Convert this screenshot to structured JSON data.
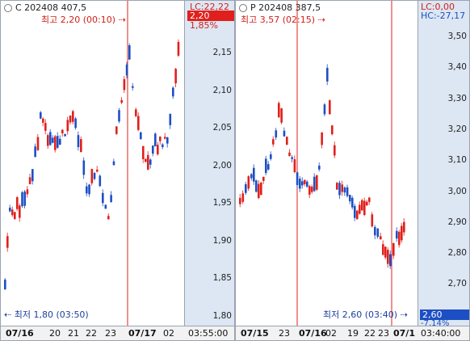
{
  "left": {
    "contract": "C 202408 407,5",
    "high_label": "최고 2,20 (00:10)",
    "low_label": "최저 1,80 (03:50)",
    "lc_label": "LC:22,22",
    "last_price": "2,20",
    "change_pct": "1,85%",
    "price_ticks": [
      "2,15",
      "2,10",
      "2,05",
      "2,00",
      "1,95",
      "1,90",
      "1,85",
      "1,80"
    ],
    "date_labels": [
      "07/16",
      "20",
      "21",
      "22",
      "23",
      "07/17",
      "02"
    ],
    "time_label": "03:55:00",
    "colors": {
      "up": "#e0201c",
      "down": "#1d4fc4",
      "badge": "#e0201c"
    }
  },
  "right": {
    "contract": "P 202408 387,5",
    "high_label": "최고 3,57 (02:15)",
    "low_label": "최저 2,60 (03:40)",
    "lc_label": "LC:0,00",
    "hc_label": "HC:-27,17",
    "last_price": "2,60",
    "change_pct": "-7,14%",
    "price_ticks": [
      "3,50",
      "3,40",
      "3,30",
      "3,20",
      "3,10",
      "3,00",
      "2,90",
      "2,80",
      "2,70"
    ],
    "date_labels": [
      "07/15",
      "23",
      "07/16",
      "02",
      "19",
      "22",
      "23",
      "07/1"
    ],
    "time_label": "03:40:00",
    "colors": {
      "up": "#e0201c",
      "down": "#1d4fc4",
      "badge": "#1d4fc4"
    }
  }
}
